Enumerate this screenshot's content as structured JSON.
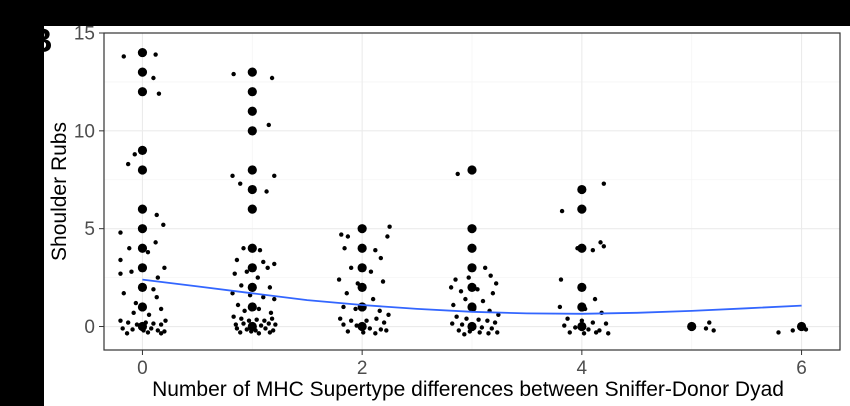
{
  "panel_label": "B",
  "chart_data": {
    "type": "scatter",
    "title": "",
    "xlabel": "Number of MHC Supertype differences between Sniffer-Donor Dyad",
    "ylabel": "Shoulder Rubs",
    "xlim": [
      -0.35,
      6.35
    ],
    "ylim": [
      -1.2,
      15
    ],
    "x_ticks": [
      0,
      2,
      4,
      6
    ],
    "y_ticks": [
      0,
      5,
      10,
      15
    ],
    "grid": true,
    "colors": {
      "points": "#000000",
      "smooth": "#3366FF",
      "grid_major": "#ebebeb",
      "grid_minor": "#f5f5f5",
      "panel_border": "#333333"
    },
    "series": [
      {
        "kind": "points_large",
        "points": [
          [
            0,
            14
          ],
          [
            0,
            13
          ],
          [
            0,
            12
          ],
          [
            0,
            9
          ],
          [
            0,
            8
          ],
          [
            0,
            6
          ],
          [
            0,
            5
          ],
          [
            0,
            4
          ],
          [
            0,
            3
          ],
          [
            0,
            2
          ],
          [
            0,
            1
          ],
          [
            0,
            0
          ],
          [
            1,
            13
          ],
          [
            1,
            12
          ],
          [
            1,
            11
          ],
          [
            1,
            10
          ],
          [
            1,
            8
          ],
          [
            1,
            7
          ],
          [
            1,
            6
          ],
          [
            1,
            4
          ],
          [
            1,
            3
          ],
          [
            1,
            2
          ],
          [
            1,
            1
          ],
          [
            1,
            0
          ],
          [
            2,
            5
          ],
          [
            2,
            4
          ],
          [
            2,
            3
          ],
          [
            2,
            2
          ],
          [
            2,
            1
          ],
          [
            2,
            0
          ],
          [
            3,
            8
          ],
          [
            3,
            5
          ],
          [
            3,
            4
          ],
          [
            3,
            3
          ],
          [
            3,
            2
          ],
          [
            3,
            1
          ],
          [
            3,
            0
          ],
          [
            4,
            7
          ],
          [
            4,
            6
          ],
          [
            4,
            4
          ],
          [
            4,
            2
          ],
          [
            4,
            1
          ],
          [
            4,
            0
          ],
          [
            5,
            0
          ],
          [
            6,
            0
          ]
        ]
      },
      {
        "kind": "points_jittered",
        "points": [
          [
            -0.17,
            13.8
          ],
          [
            0.12,
            13.9
          ],
          [
            0.1,
            12.7
          ],
          [
            0.15,
            11.9
          ],
          [
            -0.13,
            8.3
          ],
          [
            -0.07,
            8.8
          ],
          [
            0.13,
            5.7
          ],
          [
            -0.2,
            4.8
          ],
          [
            0.19,
            5.2
          ],
          [
            0.12,
            4.3
          ],
          [
            -0.12,
            4.0
          ],
          [
            0.05,
            3.8
          ],
          [
            -0.2,
            3.4
          ],
          [
            0.2,
            3.0
          ],
          [
            -0.2,
            2.7
          ],
          [
            -0.1,
            2.8
          ],
          [
            0.14,
            2.5
          ],
          [
            0.1,
            1.9
          ],
          [
            -0.17,
            1.7
          ],
          [
            0.13,
            1.5
          ],
          [
            -0.06,
            1.2
          ],
          [
            0.17,
            0.9
          ],
          [
            -0.08,
            0.7
          ],
          [
            0.06,
            0.6
          ],
          [
            -0.2,
            0.3
          ],
          [
            -0.13,
            0.2
          ],
          [
            -0.05,
            0.1
          ],
          [
            0.03,
            0.2
          ],
          [
            0.1,
            0.15
          ],
          [
            0.17,
            0.1
          ],
          [
            0.21,
            0.3
          ],
          [
            -0.18,
            -0.1
          ],
          [
            -0.09,
            -0.15
          ],
          [
            0.01,
            -0.2
          ],
          [
            0.08,
            -0.1
          ],
          [
            0.14,
            -0.2
          ],
          [
            0.2,
            -0.25
          ],
          [
            -0.14,
            -0.35
          ],
          [
            0.05,
            -0.3
          ],
          [
            0.17,
            -0.35
          ],
          [
            0.83,
            12.9
          ],
          [
            1.18,
            12.7
          ],
          [
            1.15,
            10.3
          ],
          [
            0.82,
            7.7
          ],
          [
            1.2,
            7.7
          ],
          [
            0.89,
            7.3
          ],
          [
            1.13,
            6.9
          ],
          [
            0.92,
            4.0
          ],
          [
            1.07,
            3.9
          ],
          [
            0.86,
            3.4
          ],
          [
            1.1,
            3.3
          ],
          [
            1.2,
            3.2
          ],
          [
            1.14,
            3.0
          ],
          [
            0.84,
            2.7
          ],
          [
            0.95,
            2.8
          ],
          [
            1.05,
            2.5
          ],
          [
            0.9,
            2.1
          ],
          [
            1.16,
            2.0
          ],
          [
            0.82,
            1.7
          ],
          [
            0.98,
            1.6
          ],
          [
            1.1,
            1.5
          ],
          [
            1.2,
            1.4
          ],
          [
            0.87,
            1.1
          ],
          [
            1.06,
            0.9
          ],
          [
            0.93,
            0.8
          ],
          [
            1.17,
            0.7
          ],
          [
            0.83,
            0.5
          ],
          [
            0.9,
            0.4
          ],
          [
            0.97,
            0.3
          ],
          [
            1.04,
            0.35
          ],
          [
            1.11,
            0.3
          ],
          [
            1.18,
            0.4
          ],
          [
            0.85,
            0.1
          ],
          [
            0.92,
            0.15
          ],
          [
            1.0,
            0.1
          ],
          [
            1.08,
            0.05
          ],
          [
            1.15,
            0.15
          ],
          [
            1.21,
            0.1
          ],
          [
            0.86,
            -0.1
          ],
          [
            0.95,
            -0.15
          ],
          [
            1.03,
            -0.2
          ],
          [
            1.12,
            -0.1
          ],
          [
            1.19,
            -0.2
          ],
          [
            0.89,
            -0.3
          ],
          [
            1.06,
            -0.35
          ],
          [
            1.16,
            -0.3
          ],
          [
            0.99,
            -0.25
          ],
          [
            1.81,
            4.7
          ],
          [
            1.87,
            4.6
          ],
          [
            2.25,
            5.1
          ],
          [
            2.23,
            4.6
          ],
          [
            1.84,
            4.0
          ],
          [
            2.12,
            3.9
          ],
          [
            2.17,
            3.5
          ],
          [
            1.9,
            3.0
          ],
          [
            2.08,
            2.8
          ],
          [
            1.79,
            2.4
          ],
          [
            2.19,
            2.3
          ],
          [
            1.96,
            2.2
          ],
          [
            1.86,
            1.7
          ],
          [
            2.1,
            1.4
          ],
          [
            1.83,
            1.0
          ],
          [
            1.94,
            0.9
          ],
          [
            2.16,
            0.8
          ],
          [
            2.24,
            0.6
          ],
          [
            1.8,
            0.4
          ],
          [
            1.9,
            0.3
          ],
          [
            2.04,
            0.3
          ],
          [
            2.13,
            0.4
          ],
          [
            2.2,
            0.2
          ],
          [
            1.83,
            0.1
          ],
          [
            1.95,
            0.05
          ],
          [
            2.07,
            -0.1
          ],
          [
            2.17,
            -0.15
          ],
          [
            1.87,
            -0.25
          ],
          [
            2.01,
            -0.3
          ],
          [
            2.12,
            -0.35
          ],
          [
            2.22,
            -0.2
          ],
          [
            2.87,
            7.8
          ],
          [
            3.12,
            3.0
          ],
          [
            3.17,
            2.6
          ],
          [
            2.85,
            2.4
          ],
          [
            2.97,
            2.5
          ],
          [
            3.22,
            2.2
          ],
          [
            2.81,
            2.0
          ],
          [
            3.05,
            1.9
          ],
          [
            2.9,
            1.8
          ],
          [
            3.19,
            1.7
          ],
          [
            2.94,
            1.4
          ],
          [
            3.1,
            1.3
          ],
          [
            2.83,
            1.1
          ],
          [
            3.02,
            0.9
          ],
          [
            3.16,
            0.8
          ],
          [
            3.24,
            0.6
          ],
          [
            2.86,
            0.5
          ],
          [
            2.95,
            0.4
          ],
          [
            3.06,
            0.35
          ],
          [
            3.14,
            0.3
          ],
          [
            3.21,
            0.2
          ],
          [
            2.82,
            0.15
          ],
          [
            2.91,
            0.1
          ],
          [
            3.0,
            0.05
          ],
          [
            3.09,
            -0.05
          ],
          [
            3.18,
            -0.1
          ],
          [
            2.88,
            -0.2
          ],
          [
            2.98,
            -0.25
          ],
          [
            3.07,
            -0.3
          ],
          [
            3.15,
            -0.35
          ],
          [
            3.23,
            -0.3
          ],
          [
            2.93,
            -0.4
          ],
          [
            3.82,
            5.9
          ],
          [
            4.2,
            7.3
          ],
          [
            4.17,
            4.3
          ],
          [
            4.2,
            4.1
          ],
          [
            3.96,
            4.0
          ],
          [
            4.1,
            3.9
          ],
          [
            3.81,
            2.4
          ],
          [
            4.12,
            1.4
          ],
          [
            3.8,
            1.0
          ],
          [
            4.03,
            0.9
          ],
          [
            4.18,
            0.7
          ],
          [
            3.87,
            0.4
          ],
          [
            4.0,
            0.3
          ],
          [
            4.1,
            0.2
          ],
          [
            4.22,
            0.15
          ],
          [
            3.84,
            0.05
          ],
          [
            3.94,
            -0.05
          ],
          [
            4.06,
            -0.15
          ],
          [
            4.16,
            -0.2
          ],
          [
            3.89,
            -0.3
          ],
          [
            4.02,
            -0.35
          ],
          [
            4.13,
            -0.3
          ],
          [
            4.24,
            -0.35
          ],
          [
            5.16,
            0.2
          ],
          [
            5.2,
            -0.2
          ],
          [
            5.13,
            -0.1
          ],
          [
            5.79,
            -0.3
          ],
          [
            5.92,
            -0.2
          ],
          [
            6.04,
            -0.15
          ]
        ]
      },
      {
        "kind": "smooth",
        "name": "",
        "x": [
          0,
          0.5,
          1,
          1.5,
          2,
          2.5,
          3,
          3.5,
          4,
          4.5,
          5,
          5.5,
          6
        ],
        "y": [
          2.4,
          2.05,
          1.7,
          1.35,
          1.1,
          0.9,
          0.75,
          0.67,
          0.65,
          0.7,
          0.8,
          0.93,
          1.07
        ]
      }
    ]
  }
}
